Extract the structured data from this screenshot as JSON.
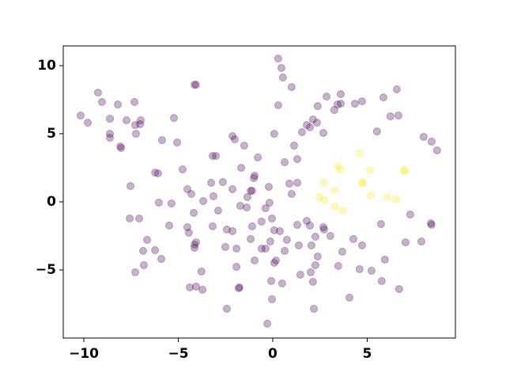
{
  "chart_data": {
    "type": "scatter",
    "xlim": [
      -11.09,
      9.67
    ],
    "ylim": [
      -10.0,
      11.45
    ],
    "xticks": [
      {
        "value": -10,
        "label": "−10"
      },
      {
        "value": -5,
        "label": "−5"
      },
      0,
      5
    ],
    "yticks": [
      {
        "value": -5,
        "label": "−5"
      },
      0,
      5,
      10
    ],
    "opacity": 0.3,
    "series": [
      {
        "color": "#440154",
        "x": [
          -10.17,
          -9.79,
          -9.25,
          -9.04,
          -8.62,
          -8.62,
          -8.62,
          -8.2,
          -8.07,
          -8.03,
          -7.74,
          -7.32,
          -7.28,
          -7.24,
          -6.99,
          -7.03,
          -5.23,
          -5.86,
          -5.06,
          -4.14,
          -4.06,
          -7.53,
          -6.23,
          -6.07,
          -4.77,
          -7.57,
          -7.07,
          -6.03,
          -5.36,
          -6.65,
          -6.86,
          -6.23,
          -7.28,
          -6.82,
          -5.9,
          -5.48,
          -4.52,
          -4.31,
          -4.18,
          -3.68,
          -4.52,
          -4.44,
          -4.14,
          -4.14,
          -4.06,
          -3.77,
          -4.39,
          -4.06,
          -3.72,
          -3.18,
          -3.01,
          -3.26,
          -3.14,
          -2.89,
          -3.18,
          -2.64,
          -2.43,
          -2.13,
          -2.51,
          -2.43,
          -2.13,
          -2.01,
          -1.51,
          -2.13,
          -1.67,
          -1.72,
          -1.92,
          -1.92,
          -1.8,
          -1.76,
          -1.34,
          -1.17,
          -1.09,
          -0.96,
          -1.0,
          -0.79,
          -1.38,
          -1.09,
          -0.96,
          -1.17,
          -0.38,
          -0.59,
          -0.59,
          -0.38,
          -0.21,
          -0.17,
          -0.04,
          -0.13,
          0.08,
          0.38,
          -0.08,
          -0.04,
          -0.29,
          0.17,
          0.08,
          0.63,
          0.5,
          0.29,
          0.46,
          0.54,
          1.0,
          0.29,
          0.08,
          0.63,
          0.88,
          1.0,
          1.3,
          1.3,
          1.13,
          1.55,
          1.8,
          1.97,
          2.13,
          2.34,
          2.68,
          2.38,
          2.85,
          3.26,
          3.43,
          3.6,
          3.6,
          4.35,
          4.73,
          5.52,
          5.86,
          6.23,
          6.65,
          6.57,
          7.99,
          8.41,
          8.7,
          7.28,
          8.37,
          8.41,
          7.87,
          7.03,
          5.73,
          4.27,
          4.73,
          5.23,
          4.6,
          5.94,
          5.77,
          6.69,
          4.06,
          3.05,
          2.68,
          2.72,
          2.26,
          1.97,
          1.8,
          1.3,
          1.38,
          2.05,
          2.38,
          3.68,
          3.47,
          2.26,
          2.01,
          2.13,
          2.18,
          1.46,
          0.75
        ],
        "values": [
          6.34,
          5.81,
          8.02,
          7.33,
          6.1,
          5.0,
          4.71,
          7.15,
          4.07,
          3.95,
          5.99,
          7.33,
          5.64,
          5.0,
          5.99,
          5.7,
          6.16,
          4.53,
          4.36,
          8.6,
          8.6,
          1.16,
          2.15,
          2.09,
          2.38,
          -1.22,
          -1.22,
          -0.06,
          -0.12,
          -2.79,
          -3.6,
          -3.55,
          -5.17,
          -4.65,
          -4.19,
          -1.74,
          0.93,
          0.58,
          -0.81,
          0.06,
          -1.86,
          -2.27,
          -3.14,
          -3.37,
          -2.97,
          -5.12,
          -6.28,
          -6.22,
          -6.45,
          3.37,
          3.37,
          1.4,
          0.41,
          -0.64,
          -1.8,
          1.45,
          -2.03,
          -2.15,
          -3.31,
          -7.85,
          4.83,
          4.59,
          4.13,
          0.93,
          2.5,
          -0.29,
          -3.43,
          -4.77,
          -6.34,
          -6.28,
          0.35,
          0.81,
          0.81,
          1.92,
          1.74,
          3.26,
          -0.41,
          -1.8,
          -4.3,
          -2.73,
          -0.47,
          -1.45,
          -3.43,
          -3.43,
          1.1,
          -0.06,
          -1.22,
          -2.91,
          -2.09,
          -2.15,
          -5.81,
          -7.15,
          -8.95,
          -4.3,
          -4.48,
          -3.6,
          -5.99,
          10.52,
          9.83,
          9.13,
          8.43,
          7.09,
          5.0,
          2.91,
          1.34,
          0.58,
          1.4,
          3.14,
          4.13,
          5.12,
          5.64,
          5.47,
          6.05,
          5.81,
          5.06,
          7.03,
          7.73,
          6.74,
          7.15,
          7.21,
          7.91,
          7.21,
          7.38,
          5.17,
          7.67,
          6.28,
          6.34,
          8.26,
          4.77,
          4.42,
          3.78,
          -0.93,
          -1.57,
          -1.69,
          -2.91,
          -2.97,
          -1.63,
          -2.73,
          -3.2,
          -5.06,
          -4.94,
          -4.24,
          -5.81,
          -6.4,
          -7.03,
          -2.5,
          -1.86,
          -2.03,
          -2.56,
          -1.74,
          -1.4,
          -1.69,
          -3.2,
          -3.2,
          -4.01,
          -3.66,
          -4.71,
          -4.65,
          -5.17,
          -5.87,
          -7.85,
          -5.35,
          -2.79
        ]
      },
      {
        "color": "#fde725",
        "x": [
          4.6,
          3.43,
          3.6,
          5.15,
          6.95,
          6.99,
          2.72,
          3.26,
          4.77,
          4.73,
          5.19,
          2.47,
          2.72,
          6.07,
          6.53,
          3.3,
          3.72
        ],
        "values": [
          3.55,
          2.62,
          2.38,
          2.33,
          2.33,
          2.27,
          1.4,
          0.87,
          1.45,
          1.34,
          0.47,
          0.35,
          0.12,
          0.35,
          0.17,
          -0.35,
          -0.64
        ]
      }
    ]
  }
}
